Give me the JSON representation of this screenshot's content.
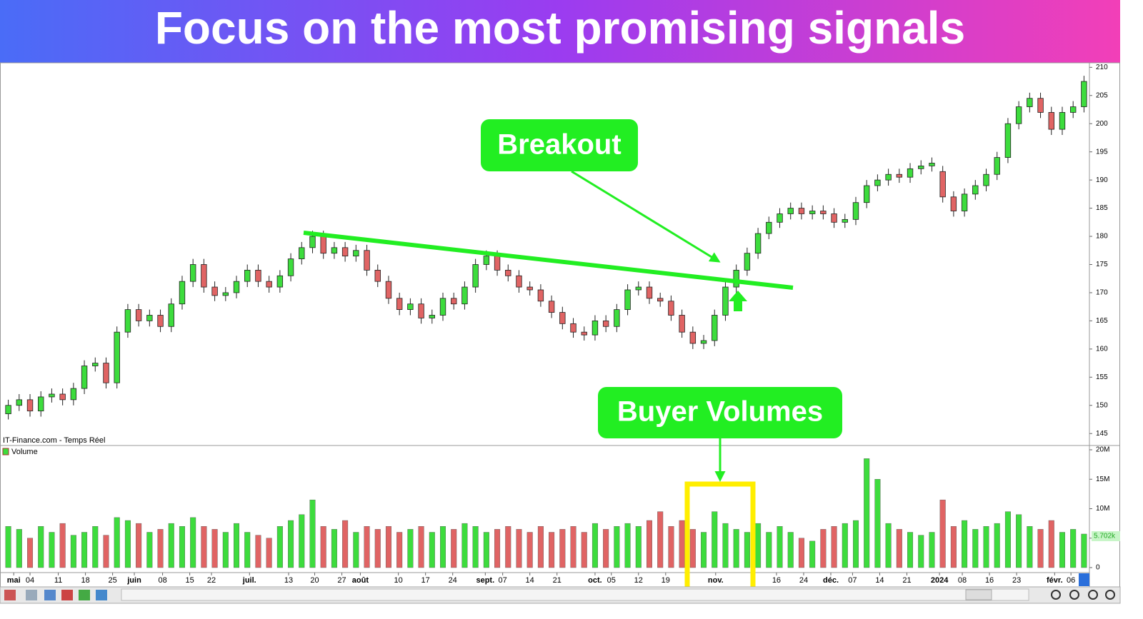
{
  "title": "Focus on the most promising signals",
  "annotations": {
    "breakout": "Breakout",
    "buyer_volumes": "Buyer Volumes"
  },
  "source": "IT-Finance.com - Temps Réel",
  "volume_legend": "Volume",
  "last_volume_label": "5.702k",
  "chart_data": {
    "type": "candlestick",
    "open": [
      148.5,
      150,
      151,
      149,
      151.5,
      152,
      151,
      153,
      157,
      157.5,
      154,
      163,
      167,
      165,
      166,
      164,
      168,
      172,
      175,
      171,
      169.5,
      170,
      172,
      174,
      172,
      171,
      173,
      176,
      178,
      180,
      177,
      178,
      176.5,
      177.5,
      174,
      172,
      169,
      167,
      168,
      165.5,
      166,
      169,
      168,
      171,
      175,
      176.5,
      174,
      173,
      171,
      170.5,
      168.5,
      166.5,
      164.5,
      163,
      162.5,
      165,
      164,
      167,
      170.5,
      171,
      169,
      168.5,
      166,
      163,
      161,
      161.5,
      166,
      171,
      174,
      177,
      180.5,
      182.5,
      184,
      185,
      184,
      184.5,
      184,
      182.5,
      183,
      186,
      189,
      190,
      191,
      190.5,
      192,
      192.5,
      191.5,
      187,
      184.5,
      187.5,
      189,
      191,
      194,
      200,
      203,
      204.5,
      202,
      199,
      202,
      203
    ],
    "high": [
      151,
      152,
      152,
      152.5,
      153,
      153,
      154,
      158,
      158.5,
      158.5,
      164,
      168,
      168,
      167,
      167,
      169,
      173,
      176,
      176,
      172,
      171,
      173,
      175,
      175,
      173,
      174,
      177,
      179,
      181,
      181,
      179,
      179,
      178.5,
      178.5,
      175,
      173,
      170,
      169,
      169,
      167,
      170,
      170,
      172,
      176,
      177.5,
      177.5,
      175,
      174,
      172,
      171.5,
      169.5,
      167.5,
      165.5,
      164,
      166,
      166,
      168,
      171.5,
      172,
      172,
      170,
      169.5,
      167,
      164,
      162.5,
      167,
      172,
      175,
      178,
      181.5,
      183.5,
      185,
      186,
      186,
      185.5,
      185.5,
      185,
      184,
      187,
      190,
      191,
      192,
      192,
      193,
      193.5,
      194,
      192.5,
      188,
      188.5,
      190,
      192,
      195,
      201,
      204,
      205.5,
      205.5,
      203,
      203,
      204,
      208.5
    ],
    "low": [
      147.5,
      149,
      148,
      148,
      150.5,
      150,
      150,
      152,
      156,
      153,
      153,
      162,
      164,
      164,
      163,
      163,
      167,
      171,
      170,
      168.5,
      168.5,
      169,
      171,
      171,
      170,
      170,
      172,
      175,
      177,
      176,
      176,
      175.5,
      175.5,
      173,
      171,
      168,
      166,
      166,
      164.5,
      164.5,
      165,
      167,
      167,
      170,
      174,
      173,
      172,
      170,
      169.5,
      167.5,
      165.5,
      163.5,
      162,
      161.5,
      161.5,
      163,
      163,
      166,
      169.5,
      168,
      167.5,
      165,
      162,
      160,
      160,
      160.5,
      165,
      170,
      173,
      176,
      179.5,
      181.5,
      183,
      183,
      183,
      183,
      181.5,
      181.5,
      182,
      185,
      188,
      189,
      189.5,
      189.5,
      191,
      191.5,
      186,
      183.5,
      183.5,
      186.5,
      188,
      190,
      193,
      199,
      202,
      201,
      198,
      198,
      201,
      202
    ],
    "close": [
      150,
      151,
      149,
      151.5,
      152,
      151,
      153,
      157,
      157.5,
      154,
      163,
      167,
      165,
      166,
      164,
      168,
      172,
      175,
      171,
      169.5,
      170,
      172,
      174,
      172,
      171,
      173,
      176,
      178,
      180,
      177,
      178,
      176.5,
      177.5,
      174,
      172,
      169,
      167,
      168,
      165.5,
      166,
      169,
      168,
      171,
      175,
      176.5,
      174,
      173,
      171,
      170.5,
      168.5,
      166.5,
      164.5,
      163,
      162.5,
      165,
      164,
      167,
      170.5,
      171,
      169,
      168.5,
      166,
      163,
      161,
      161.5,
      166,
      171,
      174,
      177,
      180.5,
      182.5,
      184,
      185,
      184,
      184.5,
      184,
      182.5,
      183,
      186,
      189,
      190,
      191,
      190.5,
      192,
      192.5,
      193,
      187,
      184.5,
      187.5,
      189,
      191,
      194,
      200,
      203,
      204.5,
      202,
      199,
      202,
      203,
      207.5
    ],
    "volume": [
      7,
      6.5,
      5,
      7,
      6,
      7.5,
      5.5,
      6,
      7,
      5.5,
      8.5,
      8,
      7.5,
      6,
      6.5,
      7.5,
      7,
      8.5,
      7,
      6.5,
      6,
      7.5,
      6,
      5.5,
      5,
      7,
      8,
      9,
      11.5,
      7,
      6.5,
      8,
      6,
      7,
      6.5,
      7,
      6,
      6.5,
      7,
      6,
      7,
      6.5,
      7.5,
      7,
      6,
      6.5,
      7,
      6.5,
      6,
      7,
      6,
      6.5,
      7,
      6,
      7.5,
      6.5,
      7,
      7.5,
      7,
      8,
      9.5,
      7,
      8,
      6.5,
      6,
      9.5,
      7.5,
      6.5,
      6,
      7.5,
      6,
      7,
      6,
      5,
      4.5,
      6.5,
      7,
      7.5,
      8,
      18.5,
      15,
      7.5,
      6.5,
      6,
      5.5,
      6,
      11.5,
      7,
      8,
      6.5,
      7,
      7.5,
      9.5,
      9,
      7,
      6.5,
      8,
      6,
      6.5,
      5.7
    ],
    "up_color": "#3ddc3d",
    "down_color": "#e06464",
    "xlim": [
      -0.5,
      99.5
    ],
    "ylim": [
      143,
      210.8
    ],
    "yticks": [
      145,
      150,
      155,
      160,
      165,
      170,
      175,
      180,
      185,
      190,
      195,
      200,
      205,
      210
    ],
    "vol_ylim": [
      0,
      20
    ],
    "vol_yticks": [
      {
        "value": 0,
        "label": "0"
      },
      {
        "value": 5,
        "label": "5M"
      },
      {
        "value": 10,
        "label": "10M"
      },
      {
        "value": 15,
        "label": "15M"
      },
      {
        "value": 20,
        "label": "20M"
      }
    ],
    "xticks": [
      {
        "value": 0.5,
        "label": "mai"
      },
      {
        "value": 2,
        "label": "04"
      },
      {
        "value": 4.6,
        "label": "11"
      },
      {
        "value": 7.1,
        "label": "18"
      },
      {
        "value": 9.6,
        "label": "25"
      },
      {
        "value": 11.6,
        "label": "juin"
      },
      {
        "value": 14.2,
        "label": "08"
      },
      {
        "value": 16.7,
        "label": "15"
      },
      {
        "value": 18.7,
        "label": "22"
      },
      {
        "value": 22.2,
        "label": "juil."
      },
      {
        "value": 25.8,
        "label": "13"
      },
      {
        "value": 28.2,
        "label": "20"
      },
      {
        "value": 30.7,
        "label": "27"
      },
      {
        "value": 32.4,
        "label": "août"
      },
      {
        "value": 35.9,
        "label": "10"
      },
      {
        "value": 38.4,
        "label": "17"
      },
      {
        "value": 40.9,
        "label": "24"
      },
      {
        "value": 43.9,
        "label": "sept."
      },
      {
        "value": 45.5,
        "label": "07"
      },
      {
        "value": 48,
        "label": "14"
      },
      {
        "value": 50.5,
        "label": "21"
      },
      {
        "value": 54,
        "label": "oct."
      },
      {
        "value": 55.5,
        "label": "05"
      },
      {
        "value": 58,
        "label": "12"
      },
      {
        "value": 60.5,
        "label": "19"
      },
      {
        "value": 65.1,
        "label": "nov."
      },
      {
        "value": 70.7,
        "label": "16"
      },
      {
        "value": 73.2,
        "label": "24"
      },
      {
        "value": 75.7,
        "label": "déc."
      },
      {
        "value": 77.7,
        "label": "07"
      },
      {
        "value": 80.2,
        "label": "14"
      },
      {
        "value": 82.7,
        "label": "21"
      },
      {
        "value": 85.7,
        "label": "2024"
      },
      {
        "value": 87.8,
        "label": "08"
      },
      {
        "value": 90.3,
        "label": "16"
      },
      {
        "value": 92.8,
        "label": "23"
      },
      {
        "value": 96.3,
        "label": "févr."
      },
      {
        "value": 97.8,
        "label": "06"
      }
    ]
  }
}
